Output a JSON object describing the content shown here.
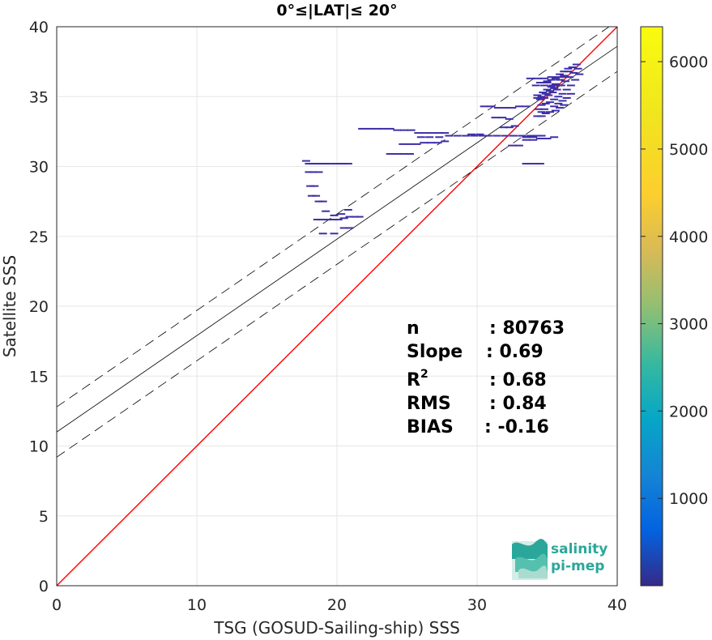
{
  "chart_data": {
    "type": "scatter",
    "title": "0°≤|LAT|≤ 20°",
    "xlabel": "TSG (GOSUD-Sailing-ship) SSS",
    "ylabel": "Satellite SSS",
    "xlim": [
      0,
      40
    ],
    "ylim": [
      0,
      40
    ],
    "xticks": [
      "0",
      "10",
      "20",
      "30",
      "40"
    ],
    "yticks": [
      "0",
      "5",
      "10",
      "15",
      "20",
      "25",
      "30",
      "35",
      "40"
    ],
    "grid": true,
    "colorbar": {
      "ticks": [
        "1000",
        "2000",
        "3000",
        "4000",
        "5000",
        "6000"
      ],
      "range": [
        0,
        6400
      ],
      "colormap": "parula"
    },
    "stats": [
      {
        "label": "n",
        "value": ": 80763"
      },
      {
        "label": "Slope",
        "value": ": 0.69"
      },
      {
        "label": "R",
        "sup": "2",
        "value": ": 0.68"
      },
      {
        "label": "RMS",
        "value": ": 0.84"
      },
      {
        "label": "BIAS",
        "value": ": -0.16"
      }
    ],
    "identity_line": {
      "color": "#ff0000",
      "x": [
        0,
        40
      ],
      "y": [
        0,
        40
      ]
    },
    "fit_line": {
      "color": "#000000",
      "slope": 0.69,
      "intercept": 11.0
    },
    "confidence_lines": {
      "color": "#000000",
      "style": "dashed",
      "offset": 1.8
    },
    "point_color": "#3d2fa8",
    "points": [
      [
        17.8,
        30.4
      ],
      [
        18.0,
        30.2
      ],
      [
        18.3,
        30.2
      ],
      [
        18.6,
        30.2
      ],
      [
        18.9,
        30.2
      ],
      [
        19.2,
        30.2
      ],
      [
        19.5,
        30.2
      ],
      [
        19.9,
        30.2
      ],
      [
        20.2,
        30.2
      ],
      [
        20.5,
        30.2
      ],
      [
        20.8,
        30.2
      ],
      [
        18.0,
        29.6
      ],
      [
        18.3,
        29.6
      ],
      [
        18.7,
        29.6
      ],
      [
        18.1,
        28.6
      ],
      [
        18.4,
        28.6
      ],
      [
        18.2,
        27.9
      ],
      [
        18.5,
        27.9
      ],
      [
        18.7,
        27.5
      ],
      [
        19.0,
        27.5
      ],
      [
        19.2,
        26.8
      ],
      [
        18.6,
        26.2
      ],
      [
        18.9,
        26.2
      ],
      [
        19.3,
        26.2
      ],
      [
        19.7,
        26.2
      ],
      [
        20.1,
        26.2
      ],
      [
        20.5,
        26.3
      ],
      [
        20.9,
        26.4
      ],
      [
        21.3,
        26.4
      ],
      [
        21.6,
        26.4
      ],
      [
        19.8,
        26.5
      ],
      [
        20.3,
        26.6
      ],
      [
        20.8,
        26.9
      ],
      [
        19.0,
        25.2
      ],
      [
        19.8,
        25.2
      ],
      [
        20.5,
        25.6
      ],
      [
        20.9,
        25.6
      ],
      [
        21.8,
        32.7
      ],
      [
        22.3,
        32.7
      ],
      [
        22.8,
        32.7
      ],
      [
        23.3,
        32.7
      ],
      [
        23.8,
        32.7
      ],
      [
        24.3,
        32.6
      ],
      [
        24.8,
        32.6
      ],
      [
        25.3,
        32.6
      ],
      [
        25.8,
        32.4
      ],
      [
        26.3,
        32.4
      ],
      [
        26.8,
        32.4
      ],
      [
        27.3,
        32.4
      ],
      [
        27.7,
        32.4
      ],
      [
        24.7,
        31.6
      ],
      [
        25.2,
        31.6
      ],
      [
        25.7,
        31.6
      ],
      [
        26.2,
        31.7
      ],
      [
        26.7,
        31.7
      ],
      [
        27.2,
        31.7
      ],
      [
        27.7,
        31.8
      ],
      [
        23.8,
        30.9
      ],
      [
        24.3,
        30.9
      ],
      [
        24.8,
        30.9
      ],
      [
        25.2,
        30.9
      ],
      [
        26.0,
        32.1
      ],
      [
        26.6,
        32.1
      ],
      [
        27.3,
        32.1
      ],
      [
        28.0,
        32.2
      ],
      [
        28.6,
        32.2
      ],
      [
        29.2,
        32.2
      ],
      [
        29.8,
        32.2
      ],
      [
        30.4,
        32.2
      ],
      [
        29.6,
        32.3
      ],
      [
        30.2,
        32.3
      ],
      [
        30.8,
        32.2
      ],
      [
        31.4,
        32.2
      ],
      [
        32.0,
        32.2
      ],
      [
        32.6,
        32.2
      ],
      [
        33.2,
        32.2
      ],
      [
        33.8,
        32.2
      ],
      [
        34.3,
        32.2
      ],
      [
        30.5,
        34.3
      ],
      [
        31.0,
        34.3
      ],
      [
        31.5,
        34.2
      ],
      [
        32.0,
        34.2
      ],
      [
        32.5,
        34.2
      ],
      [
        33.0,
        34.3
      ],
      [
        33.5,
        34.3
      ],
      [
        31.3,
        33.5
      ],
      [
        31.8,
        33.5
      ],
      [
        32.3,
        33.4
      ],
      [
        31.9,
        32.8
      ],
      [
        32.3,
        32.8
      ],
      [
        32.7,
        32.9
      ],
      [
        32.5,
        31.5
      ],
      [
        33.0,
        31.5
      ],
      [
        33.5,
        31.9
      ],
      [
        34.0,
        31.9
      ],
      [
        34.5,
        32.0
      ],
      [
        35.0,
        32.0
      ],
      [
        35.5,
        32.1
      ],
      [
        33.5,
        32.1
      ],
      [
        34.0,
        32.1
      ],
      [
        34.6,
        32.2
      ],
      [
        33.5,
        30.2
      ],
      [
        34.0,
        30.2
      ],
      [
        34.5,
        30.2
      ],
      [
        33.8,
        36.3
      ],
      [
        34.3,
        36.3
      ],
      [
        34.8,
        36.3
      ],
      [
        35.3,
        36.4
      ],
      [
        35.8,
        36.4
      ],
      [
        36.3,
        36.4
      ],
      [
        34.2,
        35.8
      ],
      [
        34.8,
        35.8
      ],
      [
        35.4,
        35.8
      ],
      [
        34.5,
        36.0
      ],
      [
        35.0,
        36.0
      ],
      [
        34.6,
        34.4
      ],
      [
        34.9,
        34.5
      ],
      [
        35.2,
        34.6
      ],
      [
        35.5,
        34.8
      ],
      [
        35.8,
        35.0
      ],
      [
        36.1,
        35.2
      ],
      [
        36.4,
        35.5
      ],
      [
        36.7,
        35.8
      ],
      [
        37.0,
        36.2
      ],
      [
        37.3,
        36.6
      ],
      [
        34.5,
        34.8
      ],
      [
        34.8,
        34.9
      ],
      [
        35.1,
        35.1
      ],
      [
        35.4,
        35.3
      ],
      [
        35.7,
        35.5
      ],
      [
        36.0,
        35.8
      ],
      [
        36.3,
        36.1
      ],
      [
        36.6,
        36.4
      ],
      [
        36.9,
        36.7
      ],
      [
        37.2,
        37.0
      ],
      [
        34.3,
        35.1
      ],
      [
        34.7,
        35.3
      ],
      [
        35.0,
        35.5
      ],
      [
        35.3,
        35.7
      ],
      [
        35.6,
        35.9
      ],
      [
        35.9,
        36.2
      ],
      [
        36.2,
        36.5
      ],
      [
        36.5,
        36.8
      ],
      [
        36.8,
        37.1
      ],
      [
        37.1,
        37.3
      ],
      [
        34.6,
        33.9
      ],
      [
        34.9,
        33.8
      ],
      [
        35.2,
        33.9
      ],
      [
        34.4,
        34.1
      ],
      [
        34.8,
        34.1
      ],
      [
        35.5,
        34.3
      ],
      [
        35.8,
        34.5
      ],
      [
        36.1,
        34.7
      ],
      [
        36.4,
        34.9
      ],
      [
        36.7,
        35.2
      ],
      [
        34.3,
        33.6
      ],
      [
        34.6,
        33.6
      ],
      [
        35.0,
        36.1
      ],
      [
        35.3,
        36.2
      ],
      [
        35.6,
        36.3
      ],
      [
        35.9,
        36.6
      ],
      [
        36.2,
        36.8
      ],
      [
        36.5,
        37.0
      ],
      [
        35.6,
        34.0
      ],
      [
        35.9,
        34.2
      ],
      [
        36.2,
        34.4
      ],
      [
        34.3,
        34.9
      ],
      [
        34.6,
        35.0
      ],
      [
        34.9,
        35.2
      ],
      [
        35.2,
        35.4
      ],
      [
        35.5,
        35.6
      ],
      [
        35.8,
        35.8
      ]
    ]
  },
  "logo": {
    "line1": "salinity",
    "line2": "pi-mep"
  }
}
